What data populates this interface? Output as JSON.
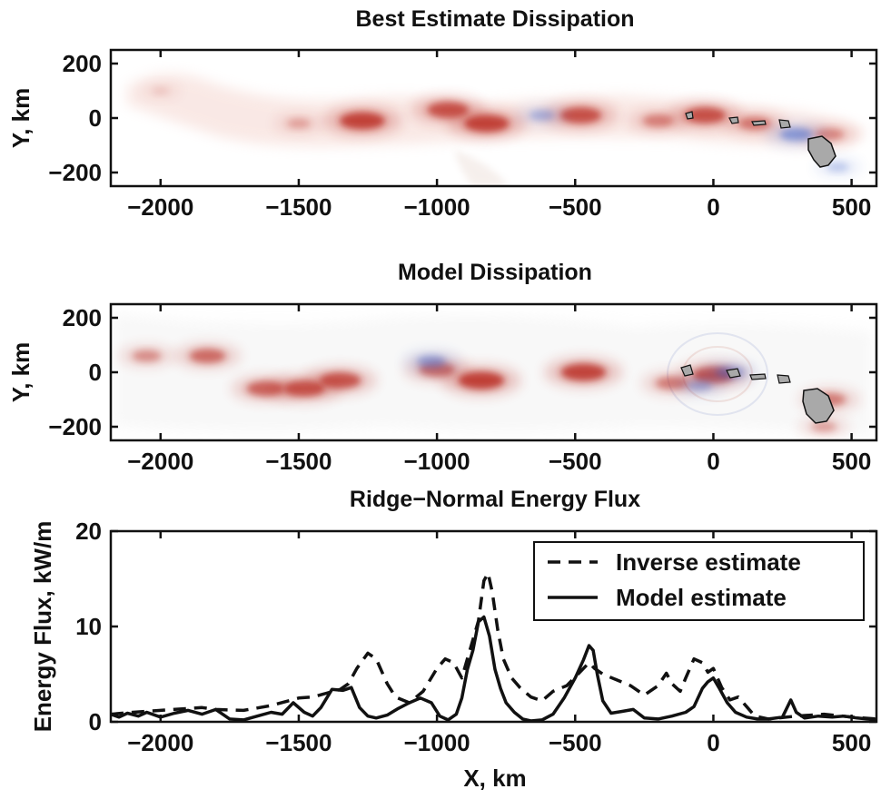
{
  "chart_data": [
    {
      "type": "heatmap",
      "title": "Best Estimate Dissipation",
      "ylabel": "Y, km",
      "xlim": [
        -2180,
        590
      ],
      "ylim": [
        -250,
        250
      ],
      "x_ticks": [
        "−2000",
        "−1500",
        "−1000",
        "−500",
        "0",
        "500"
      ],
      "x_tick_values": [
        -2000,
        -1500,
        -1000,
        -500,
        0,
        500
      ],
      "y_ticks": [
        "200",
        "0",
        "−200"
      ],
      "y_tick_values": [
        200,
        0,
        -200
      ],
      "colors": {
        "positive": "#b8261a",
        "negative": "#3a5fc8",
        "land": "#a9a9a9"
      },
      "features": [
        {
          "x": -2000,
          "y": 100,
          "intensity": 0.15
        },
        {
          "x": -1500,
          "y": -20,
          "intensity": 0.35
        },
        {
          "x": -1270,
          "y": -10,
          "intensity": 0.95
        },
        {
          "x": -960,
          "y": 30,
          "intensity": 0.85
        },
        {
          "x": -820,
          "y": -20,
          "intensity": 0.95
        },
        {
          "x": -480,
          "y": 10,
          "intensity": 0.85
        },
        {
          "x": -200,
          "y": -10,
          "intensity": 0.55
        },
        {
          "x": -30,
          "y": 10,
          "intensity": 0.85
        },
        {
          "x": 150,
          "y": -20,
          "intensity": 0.6
        },
        {
          "x": 420,
          "y": -60,
          "intensity": 0.5
        },
        {
          "x": -620,
          "y": 10,
          "intensity": -0.4
        },
        {
          "x": 300,
          "y": -60,
          "intensity": -0.6
        },
        {
          "x": 450,
          "y": -180,
          "intensity": -0.3
        }
      ]
    },
    {
      "type": "heatmap",
      "title": "Model Dissipation",
      "ylabel": "Y, km",
      "xlim": [
        -2180,
        590
      ],
      "ylim": [
        -250,
        250
      ],
      "x_ticks": [
        "−2000",
        "−1500",
        "−1000",
        "−500",
        "0",
        "500"
      ],
      "x_tick_values": [
        -2000,
        -1500,
        -1000,
        -500,
        0,
        500
      ],
      "y_ticks": [
        "200",
        "0",
        "−200"
      ],
      "y_tick_values": [
        200,
        0,
        -200
      ],
      "colors": {
        "positive": "#b8261a",
        "negative": "#3a5fc8",
        "land": "#a9a9a9"
      },
      "features": [
        {
          "x": -2050,
          "y": 60,
          "intensity": 0.5
        },
        {
          "x": -1830,
          "y": 60,
          "intensity": 0.7
        },
        {
          "x": -1620,
          "y": -60,
          "intensity": 0.75
        },
        {
          "x": -1480,
          "y": -60,
          "intensity": 0.85
        },
        {
          "x": -1350,
          "y": -30,
          "intensity": 0.85
        },
        {
          "x": -1000,
          "y": 10,
          "intensity": 0.7
        },
        {
          "x": -840,
          "y": -30,
          "intensity": 0.98
        },
        {
          "x": -470,
          "y": 0,
          "intensity": 0.95
        },
        {
          "x": -150,
          "y": -40,
          "intensity": 0.6
        },
        {
          "x": 0,
          "y": -10,
          "intensity": 0.85
        },
        {
          "x": 420,
          "y": -100,
          "intensity": 0.6
        },
        {
          "x": 400,
          "y": -200,
          "intensity": 0.4
        },
        {
          "x": -1020,
          "y": 40,
          "intensity": -0.5
        },
        {
          "x": -50,
          "y": -50,
          "intensity": -0.4
        },
        {
          "x": 60,
          "y": 0,
          "intensity": -0.5
        }
      ]
    },
    {
      "type": "line",
      "title": "Ridge−Normal Energy Flux",
      "xlabel": "X, km",
      "ylabel": "Energy Flux, kW/m",
      "xlim": [
        -2180,
        590
      ],
      "ylim": [
        0,
        20
      ],
      "x_ticks": [
        "−2000",
        "−1500",
        "−1000",
        "−500",
        "0",
        "500"
      ],
      "x_tick_values": [
        -2000,
        -1500,
        -1000,
        -500,
        0,
        500
      ],
      "y_ticks": [
        "20",
        "10",
        "0"
      ],
      "y_tick_values": [
        20,
        10,
        0
      ],
      "legend_position": "top-right",
      "series": [
        {
          "name": "Inverse estimate",
          "style": "dashed",
          "x": [
            -2180,
            -2100,
            -2000,
            -1900,
            -1850,
            -1800,
            -1700,
            -1600,
            -1500,
            -1450,
            -1400,
            -1350,
            -1320,
            -1290,
            -1250,
            -1220,
            -1180,
            -1150,
            -1100,
            -1050,
            -1000,
            -970,
            -940,
            -910,
            -880,
            -850,
            -830,
            -815,
            -800,
            -780,
            -760,
            -730,
            -700,
            -660,
            -620,
            -580,
            -530,
            -490,
            -450,
            -430,
            -400,
            -350,
            -300,
            -250,
            -200,
            -170,
            -150,
            -120,
            -100,
            -70,
            -40,
            -20,
            0,
            30,
            60,
            90,
            120,
            150,
            200,
            300,
            400,
            500,
            590
          ],
          "y": [
            0.8,
            1.0,
            1.2,
            1.4,
            1.5,
            1.3,
            1.2,
            1.7,
            2.5,
            2.6,
            3.0,
            3.4,
            4.0,
            5.6,
            7.2,
            6.6,
            4.0,
            2.6,
            2.0,
            3.2,
            5.6,
            6.6,
            6.2,
            4.6,
            7.6,
            10.6,
            14.8,
            15.6,
            13.6,
            9.6,
            6.6,
            4.6,
            3.6,
            2.6,
            2.2,
            3.2,
            3.8,
            5.0,
            6.2,
            5.6,
            5.0,
            4.4,
            3.8,
            2.8,
            3.8,
            5.1,
            4.0,
            3.2,
            4.6,
            6.6,
            6.2,
            5.2,
            5.6,
            3.6,
            2.3,
            2.6,
            1.6,
            0.6,
            0.3,
            0.6,
            0.8,
            0.5,
            0.3
          ]
        },
        {
          "name": "Model estimate",
          "style": "solid",
          "x": [
            -2180,
            -2150,
            -2120,
            -2080,
            -2050,
            -2000,
            -1950,
            -1900,
            -1850,
            -1800,
            -1750,
            -1700,
            -1650,
            -1600,
            -1560,
            -1520,
            -1480,
            -1450,
            -1420,
            -1380,
            -1340,
            -1310,
            -1280,
            -1250,
            -1220,
            -1180,
            -1140,
            -1100,
            -1060,
            -1020,
            -990,
            -960,
            -930,
            -910,
            -890,
            -870,
            -850,
            -830,
            -810,
            -790,
            -770,
            -750,
            -720,
            -690,
            -660,
            -620,
            -580,
            -540,
            -500,
            -470,
            -450,
            -435,
            -420,
            -400,
            -370,
            -330,
            -290,
            -250,
            -200,
            -150,
            -100,
            -70,
            -40,
            -20,
            0,
            20,
            50,
            80,
            120,
            160,
            200,
            250,
            280,
            300,
            330,
            380,
            430,
            470,
            520,
            590
          ],
          "y": [
            0.8,
            0.5,
            0.9,
            0.6,
            1.0,
            0.5,
            0.9,
            1.2,
            0.8,
            1.3,
            0.3,
            0.2,
            0.6,
            1.0,
            0.8,
            2.0,
            1.0,
            0.6,
            1.5,
            3.4,
            3.3,
            3.6,
            1.5,
            0.6,
            0.4,
            0.7,
            1.4,
            2.0,
            2.5,
            2.0,
            0.6,
            0.2,
            0.8,
            2.5,
            5.5,
            7.5,
            10.5,
            11.0,
            9.0,
            5.5,
            3.5,
            2.0,
            1.0,
            0.3,
            0.1,
            0.2,
            0.8,
            2.5,
            4.6,
            6.5,
            8.0,
            7.5,
            5.0,
            2.2,
            0.9,
            1.1,
            1.3,
            0.4,
            0.3,
            0.6,
            1.0,
            1.6,
            3.5,
            4.2,
            4.6,
            3.6,
            2.0,
            1.0,
            0.5,
            0.3,
            0.3,
            0.5,
            2.3,
            1.0,
            0.4,
            0.6,
            0.5,
            0.6,
            0.4,
            0.2
          ]
        }
      ]
    }
  ]
}
